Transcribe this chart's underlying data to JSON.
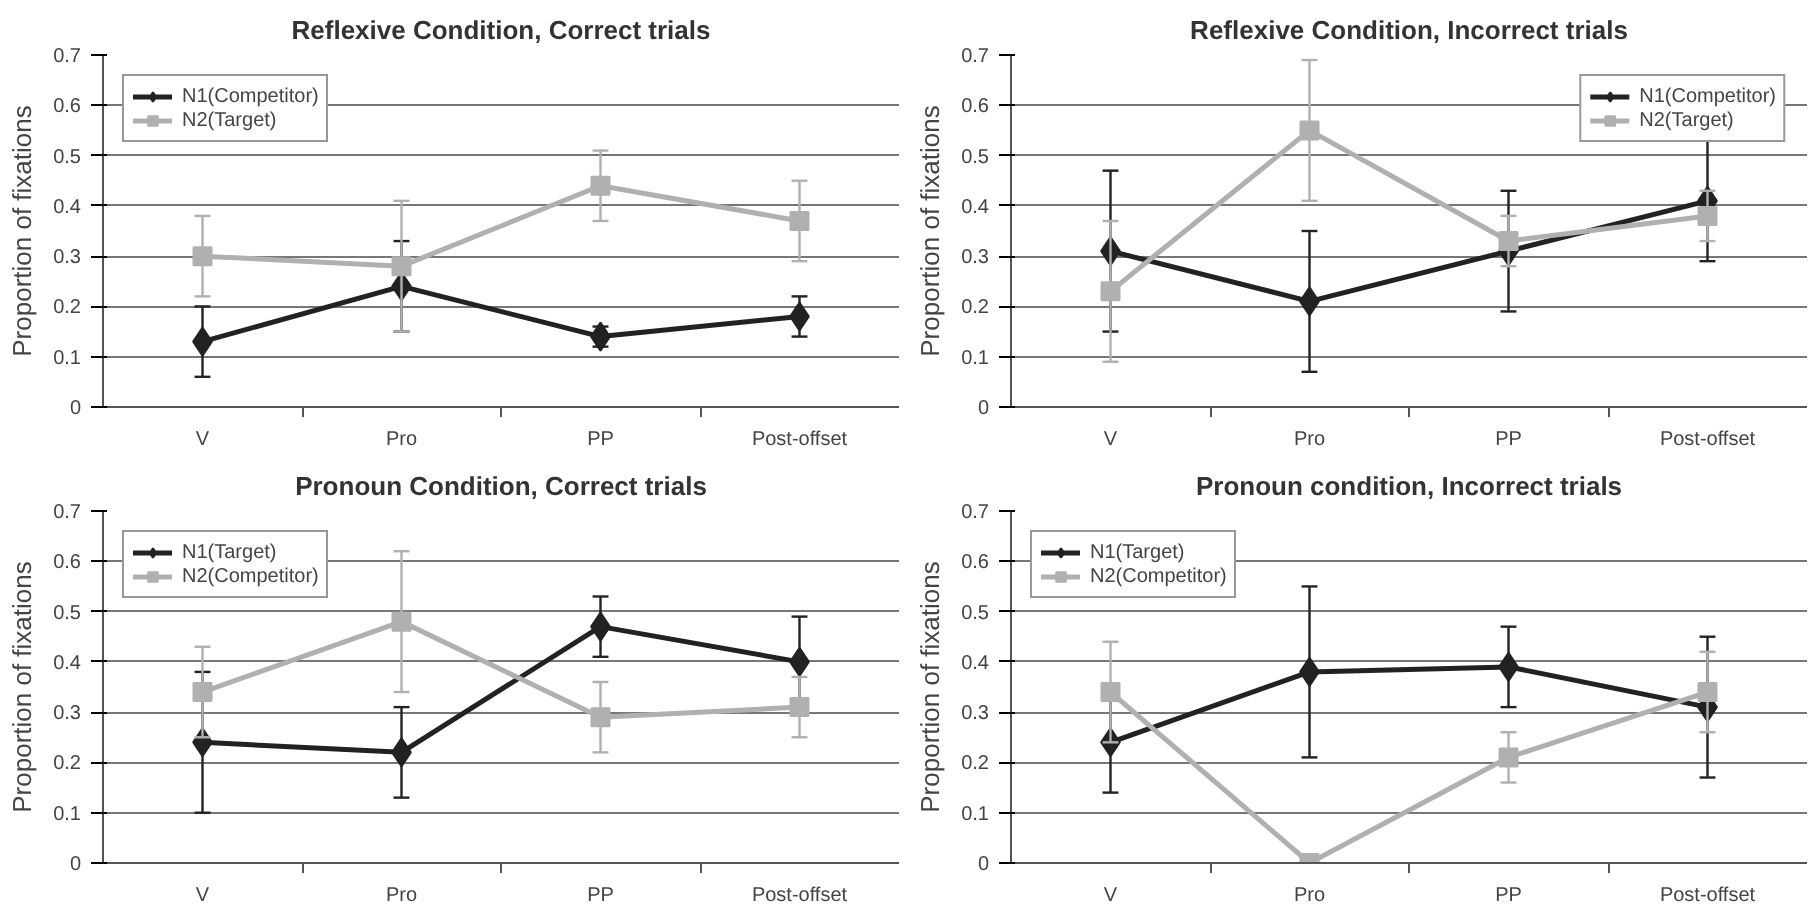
{
  "chart_data": [
    {
      "type": "line",
      "title": "Reflexive Condition, Correct trials",
      "ylabel": "Proportion of fixations",
      "categories": [
        "V",
        "Pro",
        "PP",
        "Post-offset"
      ],
      "ylim": [
        0,
        0.7
      ],
      "yticks": [
        0,
        0.1,
        0.2,
        0.3,
        0.4,
        0.5,
        0.6,
        0.7
      ],
      "grid": "y",
      "legend": "top left",
      "series": [
        {
          "name": "N1(Competitor)",
          "color": "#222222",
          "marker": "diamond",
          "values": [
            0.13,
            0.24,
            0.14,
            0.18
          ],
          "errors": [
            0.07,
            0.09,
            0.02,
            0.04
          ]
        },
        {
          "name": "N2(Target)",
          "color": "#b0b0b0",
          "marker": "square",
          "values": [
            0.3,
            0.28,
            0.44,
            0.37
          ],
          "errors": [
            0.08,
            0.13,
            0.07,
            0.08
          ]
        }
      ]
    },
    {
      "type": "line",
      "title": "Reflexive Condition, Incorrect trials",
      "ylabel": "Proportion of fixations",
      "categories": [
        "V",
        "Pro",
        "PP",
        "Post-offset"
      ],
      "ylim": [
        0,
        0.7
      ],
      "yticks": [
        0,
        0.1,
        0.2,
        0.3,
        0.4,
        0.5,
        0.6,
        0.7
      ],
      "grid": "y",
      "legend": "top right",
      "series": [
        {
          "name": "N1(Competitor)",
          "color": "#222222",
          "marker": "diamond",
          "values": [
            0.31,
            0.21,
            0.31,
            0.41
          ],
          "errors": [
            0.16,
            0.14,
            0.12,
            0.12
          ]
        },
        {
          "name": "N2(Target)",
          "color": "#b0b0b0",
          "marker": "square",
          "values": [
            0.23,
            0.55,
            0.33,
            0.38
          ],
          "errors": [
            0.14,
            0.14,
            0.05,
            0.05
          ]
        }
      ]
    },
    {
      "type": "line",
      "title": "Pronoun Condition, Correct trials",
      "ylabel": "Proportion of fixations",
      "categories": [
        "V",
        "Pro",
        "PP",
        "Post-offset"
      ],
      "ylim": [
        0,
        0.7
      ],
      "yticks": [
        0,
        0.1,
        0.2,
        0.3,
        0.4,
        0.5,
        0.6,
        0.7
      ],
      "grid": "y",
      "legend": "top left",
      "series": [
        {
          "name": "N1(Target)",
          "color": "#222222",
          "marker": "diamond",
          "values": [
            0.24,
            0.22,
            0.47,
            0.4
          ],
          "errors": [
            0.14,
            0.09,
            0.06,
            0.09
          ]
        },
        {
          "name": "N2(Competitor)",
          "color": "#b0b0b0",
          "marker": "square",
          "values": [
            0.34,
            0.48,
            0.29,
            0.31
          ],
          "errors": [
            0.09,
            0.14,
            0.07,
            0.06
          ]
        }
      ]
    },
    {
      "type": "line",
      "title": "Pronoun condition, Incorrect trials",
      "ylabel": "Proportion of fixations",
      "categories": [
        "V",
        "Pro",
        "PP",
        "Post-offset"
      ],
      "ylim": [
        0,
        0.7
      ],
      "yticks": [
        0,
        0.1,
        0.2,
        0.3,
        0.4,
        0.5,
        0.6,
        0.7
      ],
      "grid": "y",
      "legend": "top left",
      "series": [
        {
          "name": "N1(Target)",
          "color": "#222222",
          "marker": "diamond",
          "values": [
            0.24,
            0.38,
            0.39,
            0.31
          ],
          "errors": [
            0.1,
            0.17,
            0.08,
            0.14
          ]
        },
        {
          "name": "N2(Competitor)",
          "color": "#b0b0b0",
          "marker": "square",
          "values": [
            0.34,
            0.0,
            0.21,
            0.34
          ],
          "errors": [
            0.1,
            null,
            0.05,
            0.08
          ]
        }
      ]
    }
  ]
}
